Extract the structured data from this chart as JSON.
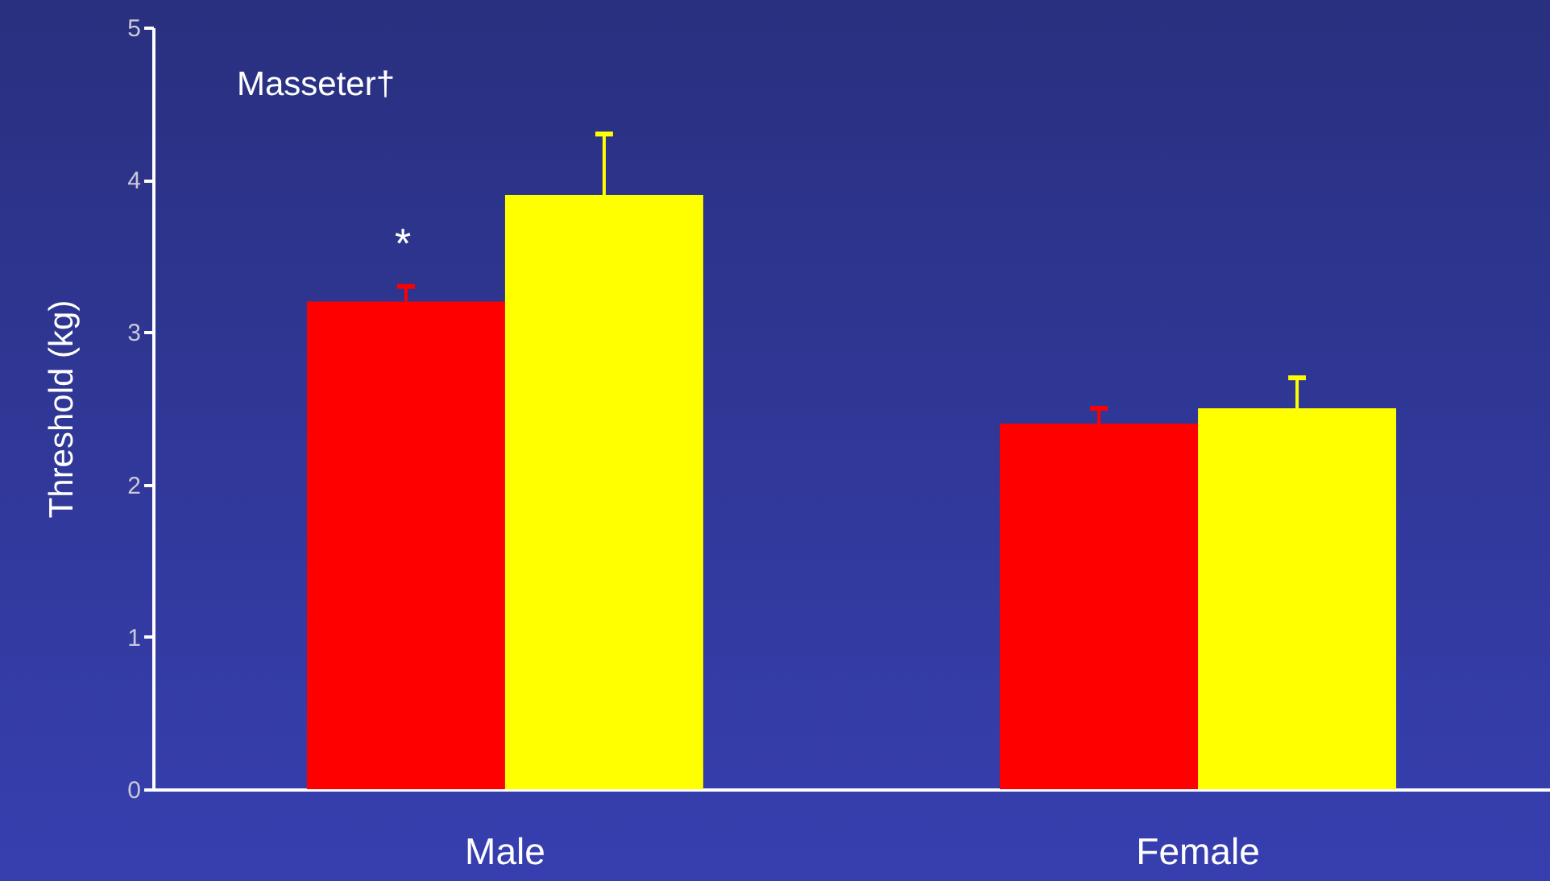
{
  "chart_data": {
    "type": "bar",
    "ylabel": "Threshold (kg)",
    "categories": [
      "Male",
      "Female"
    ],
    "series": [
      {
        "color": "#ff0000",
        "values": [
          3.2,
          2.4
        ],
        "errors": [
          [
            3.2,
            3.3
          ],
          [
            2.4,
            2.5
          ]
        ]
      },
      {
        "color": "#ffff00",
        "values": [
          3.9,
          2.5
        ],
        "errors": [
          [
            3.9,
            4.3
          ],
          [
            2.5,
            2.7
          ]
        ]
      }
    ],
    "ylim": [
      0,
      5
    ],
    "yticks": [
      0,
      1,
      2,
      3,
      4,
      5
    ],
    "grid": false,
    "annotations": [
      "Masseter†",
      "*"
    ]
  }
}
